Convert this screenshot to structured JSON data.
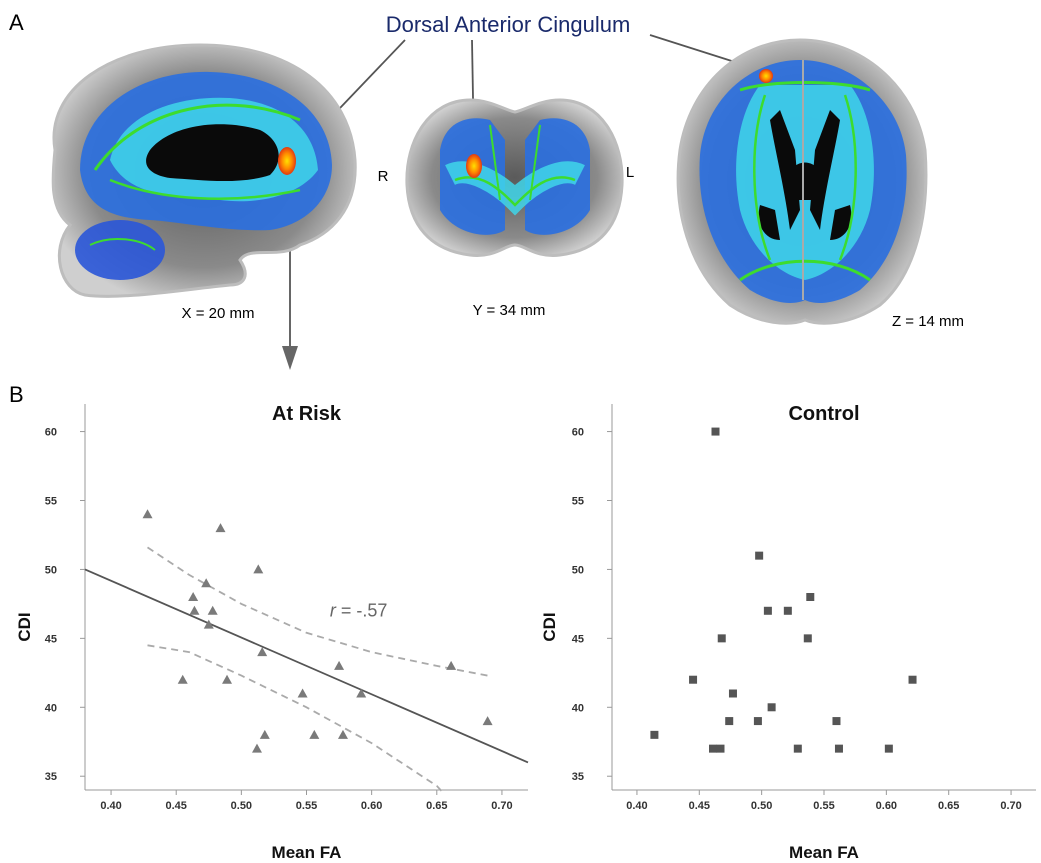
{
  "panel_a": {
    "label": "A",
    "title": "Dorsal Anterior Cingulum",
    "views": [
      {
        "caption": "X = 20 mm"
      },
      {
        "caption": "Y = 34 mm",
        "left_label": "R",
        "right_label": "L"
      },
      {
        "caption": "Z = 14 mm"
      }
    ]
  },
  "panel_b": {
    "label": "B"
  },
  "colors": {
    "brain_gray": "#8a8a8a",
    "fa_blue": "#1f5fd6",
    "fa_cyan": "#39d1ea",
    "tract_green": "#3ddc2e",
    "cluster_red": "#e23a12",
    "cluster_yellow": "#ffe100",
    "title_navy": "#1a2a6b",
    "marker_gray": "#7a7a7a",
    "marker_dark": "#555555"
  },
  "chart_data": [
    {
      "type": "scatter",
      "title": "At Risk",
      "xlabel": "Mean FA",
      "ylabel": "CDI",
      "xlim": [
        0.38,
        0.72
      ],
      "ylim": [
        34,
        62
      ],
      "xticks": [
        "0.40",
        "0.45",
        "0.50",
        "0.55",
        "0.60",
        "0.65",
        "0.70"
      ],
      "yticks": [
        "35",
        "40",
        "45",
        "50",
        "55",
        "60"
      ],
      "marker": "triangle",
      "points": [
        [
          0.428,
          54
        ],
        [
          0.484,
          53
        ],
        [
          0.513,
          50
        ],
        [
          0.473,
          49
        ],
        [
          0.463,
          48
        ],
        [
          0.464,
          47
        ],
        [
          0.478,
          47
        ],
        [
          0.475,
          46
        ],
        [
          0.516,
          44
        ],
        [
          0.575,
          43
        ],
        [
          0.455,
          42
        ],
        [
          0.489,
          42
        ],
        [
          0.661,
          43
        ],
        [
          0.547,
          41
        ],
        [
          0.592,
          41
        ],
        [
          0.689,
          39
        ],
        [
          0.518,
          38
        ],
        [
          0.556,
          38
        ],
        [
          0.578,
          38
        ],
        [
          0.512,
          37
        ]
      ],
      "fit_line": {
        "x": [
          0.38,
          0.72
        ],
        "y": [
          50.0,
          36.0
        ]
      },
      "ci_upper": {
        "x": [
          0.428,
          0.46,
          0.5,
          0.55,
          0.6,
          0.65,
          0.689
        ],
        "y": [
          51.6,
          49.6,
          47.5,
          45.4,
          44.0,
          43.0,
          42.3
        ]
      },
      "ci_lower": {
        "x": [
          0.428,
          0.46,
          0.5,
          0.55,
          0.6,
          0.65,
          0.655
        ],
        "y": [
          44.5,
          44.0,
          42.3,
          40.0,
          37.4,
          34.3,
          33.8
        ]
      },
      "annotation": {
        "italic": "r",
        "text": " = -.57"
      }
    },
    {
      "type": "scatter",
      "title": "Control",
      "xlabel": "Mean FA",
      "ylabel": "CDI",
      "xlim": [
        0.38,
        0.72
      ],
      "ylim": [
        34,
        62
      ],
      "xticks": [
        "0.40",
        "0.45",
        "0.50",
        "0.55",
        "0.60",
        "0.65",
        "0.70"
      ],
      "yticks": [
        "35",
        "40",
        "45",
        "50",
        "55",
        "60"
      ],
      "marker": "square",
      "points": [
        [
          0.463,
          60
        ],
        [
          0.498,
          51
        ],
        [
          0.539,
          48
        ],
        [
          0.505,
          47
        ],
        [
          0.521,
          47
        ],
        [
          0.468,
          45
        ],
        [
          0.537,
          45
        ],
        [
          0.445,
          42
        ],
        [
          0.621,
          42
        ],
        [
          0.477,
          41
        ],
        [
          0.508,
          40
        ],
        [
          0.414,
          38
        ],
        [
          0.474,
          39
        ],
        [
          0.497,
          39
        ],
        [
          0.56,
          39
        ],
        [
          0.461,
          37
        ],
        [
          0.467,
          37
        ],
        [
          0.529,
          37
        ],
        [
          0.562,
          37
        ],
        [
          0.602,
          37
        ]
      ]
    }
  ]
}
